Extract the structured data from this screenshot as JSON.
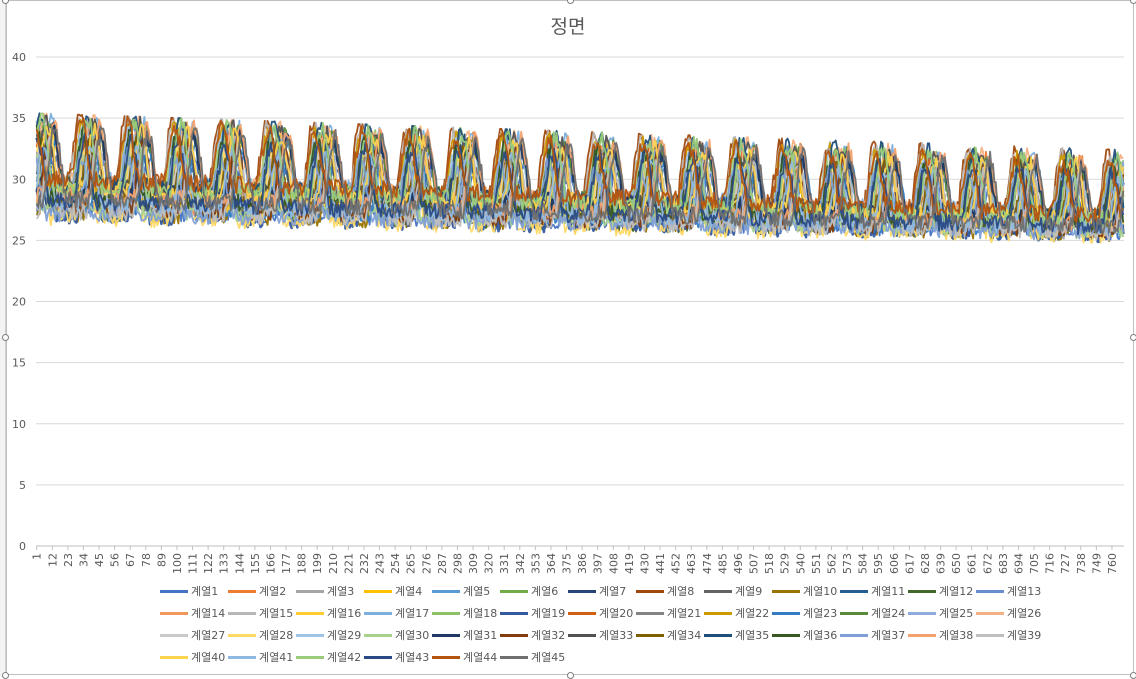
{
  "chart_data": {
    "type": "line",
    "title": "정면",
    "xlabel": "",
    "ylabel": "",
    "ylim": [
      0,
      40
    ],
    "yticks": [
      0,
      5,
      10,
      15,
      20,
      25,
      30,
      35,
      40
    ],
    "x_count": 768,
    "xtick_labels": [
      "1",
      "12",
      "23",
      "34",
      "45",
      "56",
      "67",
      "78",
      "89",
      "100",
      "111",
      "122",
      "133",
      "144",
      "155",
      "166",
      "177",
      "188",
      "199",
      "210",
      "221",
      "232",
      "243",
      "254",
      "265",
      "276",
      "287",
      "298",
      "309",
      "320",
      "331",
      "342",
      "353",
      "364",
      "375",
      "386",
      "397",
      "408",
      "419",
      "430",
      "441",
      "452",
      "463",
      "474",
      "485",
      "496",
      "507",
      "518",
      "529",
      "540",
      "551",
      "562",
      "573",
      "584",
      "595",
      "606",
      "617",
      "628",
      "639",
      "650",
      "661",
      "672",
      "683",
      "694",
      "705",
      "716",
      "727",
      "738",
      "749",
      "760"
    ],
    "grid": true,
    "legend_position": "bottom",
    "approx_envelope": {
      "period_points": 33,
      "first_cycle_peak": 34.8,
      "last_cycle_peak": 31.8,
      "first_cycle_trough": 25.5,
      "last_cycle_trough": 23.5
    },
    "series": [
      {
        "name": "계열1",
        "color": "#4472C4"
      },
      {
        "name": "계열2",
        "color": "#ED7D31"
      },
      {
        "name": "계열3",
        "color": "#A5A5A5"
      },
      {
        "name": "계열4",
        "color": "#FFC000"
      },
      {
        "name": "계열5",
        "color": "#5B9BD5"
      },
      {
        "name": "계열6",
        "color": "#70AD47"
      },
      {
        "name": "계열7",
        "color": "#264478"
      },
      {
        "name": "계열8",
        "color": "#9E480E"
      },
      {
        "name": "계열9",
        "color": "#636363"
      },
      {
        "name": "계열10",
        "color": "#997300"
      },
      {
        "name": "계열11",
        "color": "#255E91"
      },
      {
        "name": "계열12",
        "color": "#43682B"
      },
      {
        "name": "계열13",
        "color": "#698ED0"
      },
      {
        "name": "계열14",
        "color": "#F1975A"
      },
      {
        "name": "계열15",
        "color": "#B7B7B7"
      },
      {
        "name": "계열16",
        "color": "#FFCD33"
      },
      {
        "name": "계열17",
        "color": "#7CAFDD"
      },
      {
        "name": "계열18",
        "color": "#8CC168"
      },
      {
        "name": "계열19",
        "color": "#335AA1"
      },
      {
        "name": "계열20",
        "color": "#D26012"
      },
      {
        "name": "계열21",
        "color": "#848484"
      },
      {
        "name": "계열22",
        "color": "#CC9A00"
      },
      {
        "name": "계열23",
        "color": "#327DC2"
      },
      {
        "name": "계열24",
        "color": "#5A8A39"
      },
      {
        "name": "계열25",
        "color": "#8FAADC"
      },
      {
        "name": "계열26",
        "color": "#F4B183"
      },
      {
        "name": "계열27",
        "color": "#C9C9C9"
      },
      {
        "name": "계열28",
        "color": "#FFD966"
      },
      {
        "name": "계열29",
        "color": "#9DC3E6"
      },
      {
        "name": "계열30",
        "color": "#A9D18E"
      },
      {
        "name": "계열31",
        "color": "#1F3864"
      },
      {
        "name": "계열32",
        "color": "#843C0C"
      },
      {
        "name": "계열33",
        "color": "#525252"
      },
      {
        "name": "계열34",
        "color": "#7F6000"
      },
      {
        "name": "계열35",
        "color": "#1F4E79"
      },
      {
        "name": "계열36",
        "color": "#385723"
      },
      {
        "name": "계열37",
        "color": "#7F9FD6"
      },
      {
        "name": "계열38",
        "color": "#F3A26E"
      },
      {
        "name": "계열39",
        "color": "#BFBFBF"
      },
      {
        "name": "계열40",
        "color": "#FFD44D"
      },
      {
        "name": "계열41",
        "color": "#8EB9E2"
      },
      {
        "name": "계열42",
        "color": "#9ACB7B"
      },
      {
        "name": "계열43",
        "color": "#2A4A85"
      },
      {
        "name": "계열44",
        "color": "#B4540F"
      },
      {
        "name": "계열45",
        "color": "#6F6F6F"
      }
    ]
  }
}
